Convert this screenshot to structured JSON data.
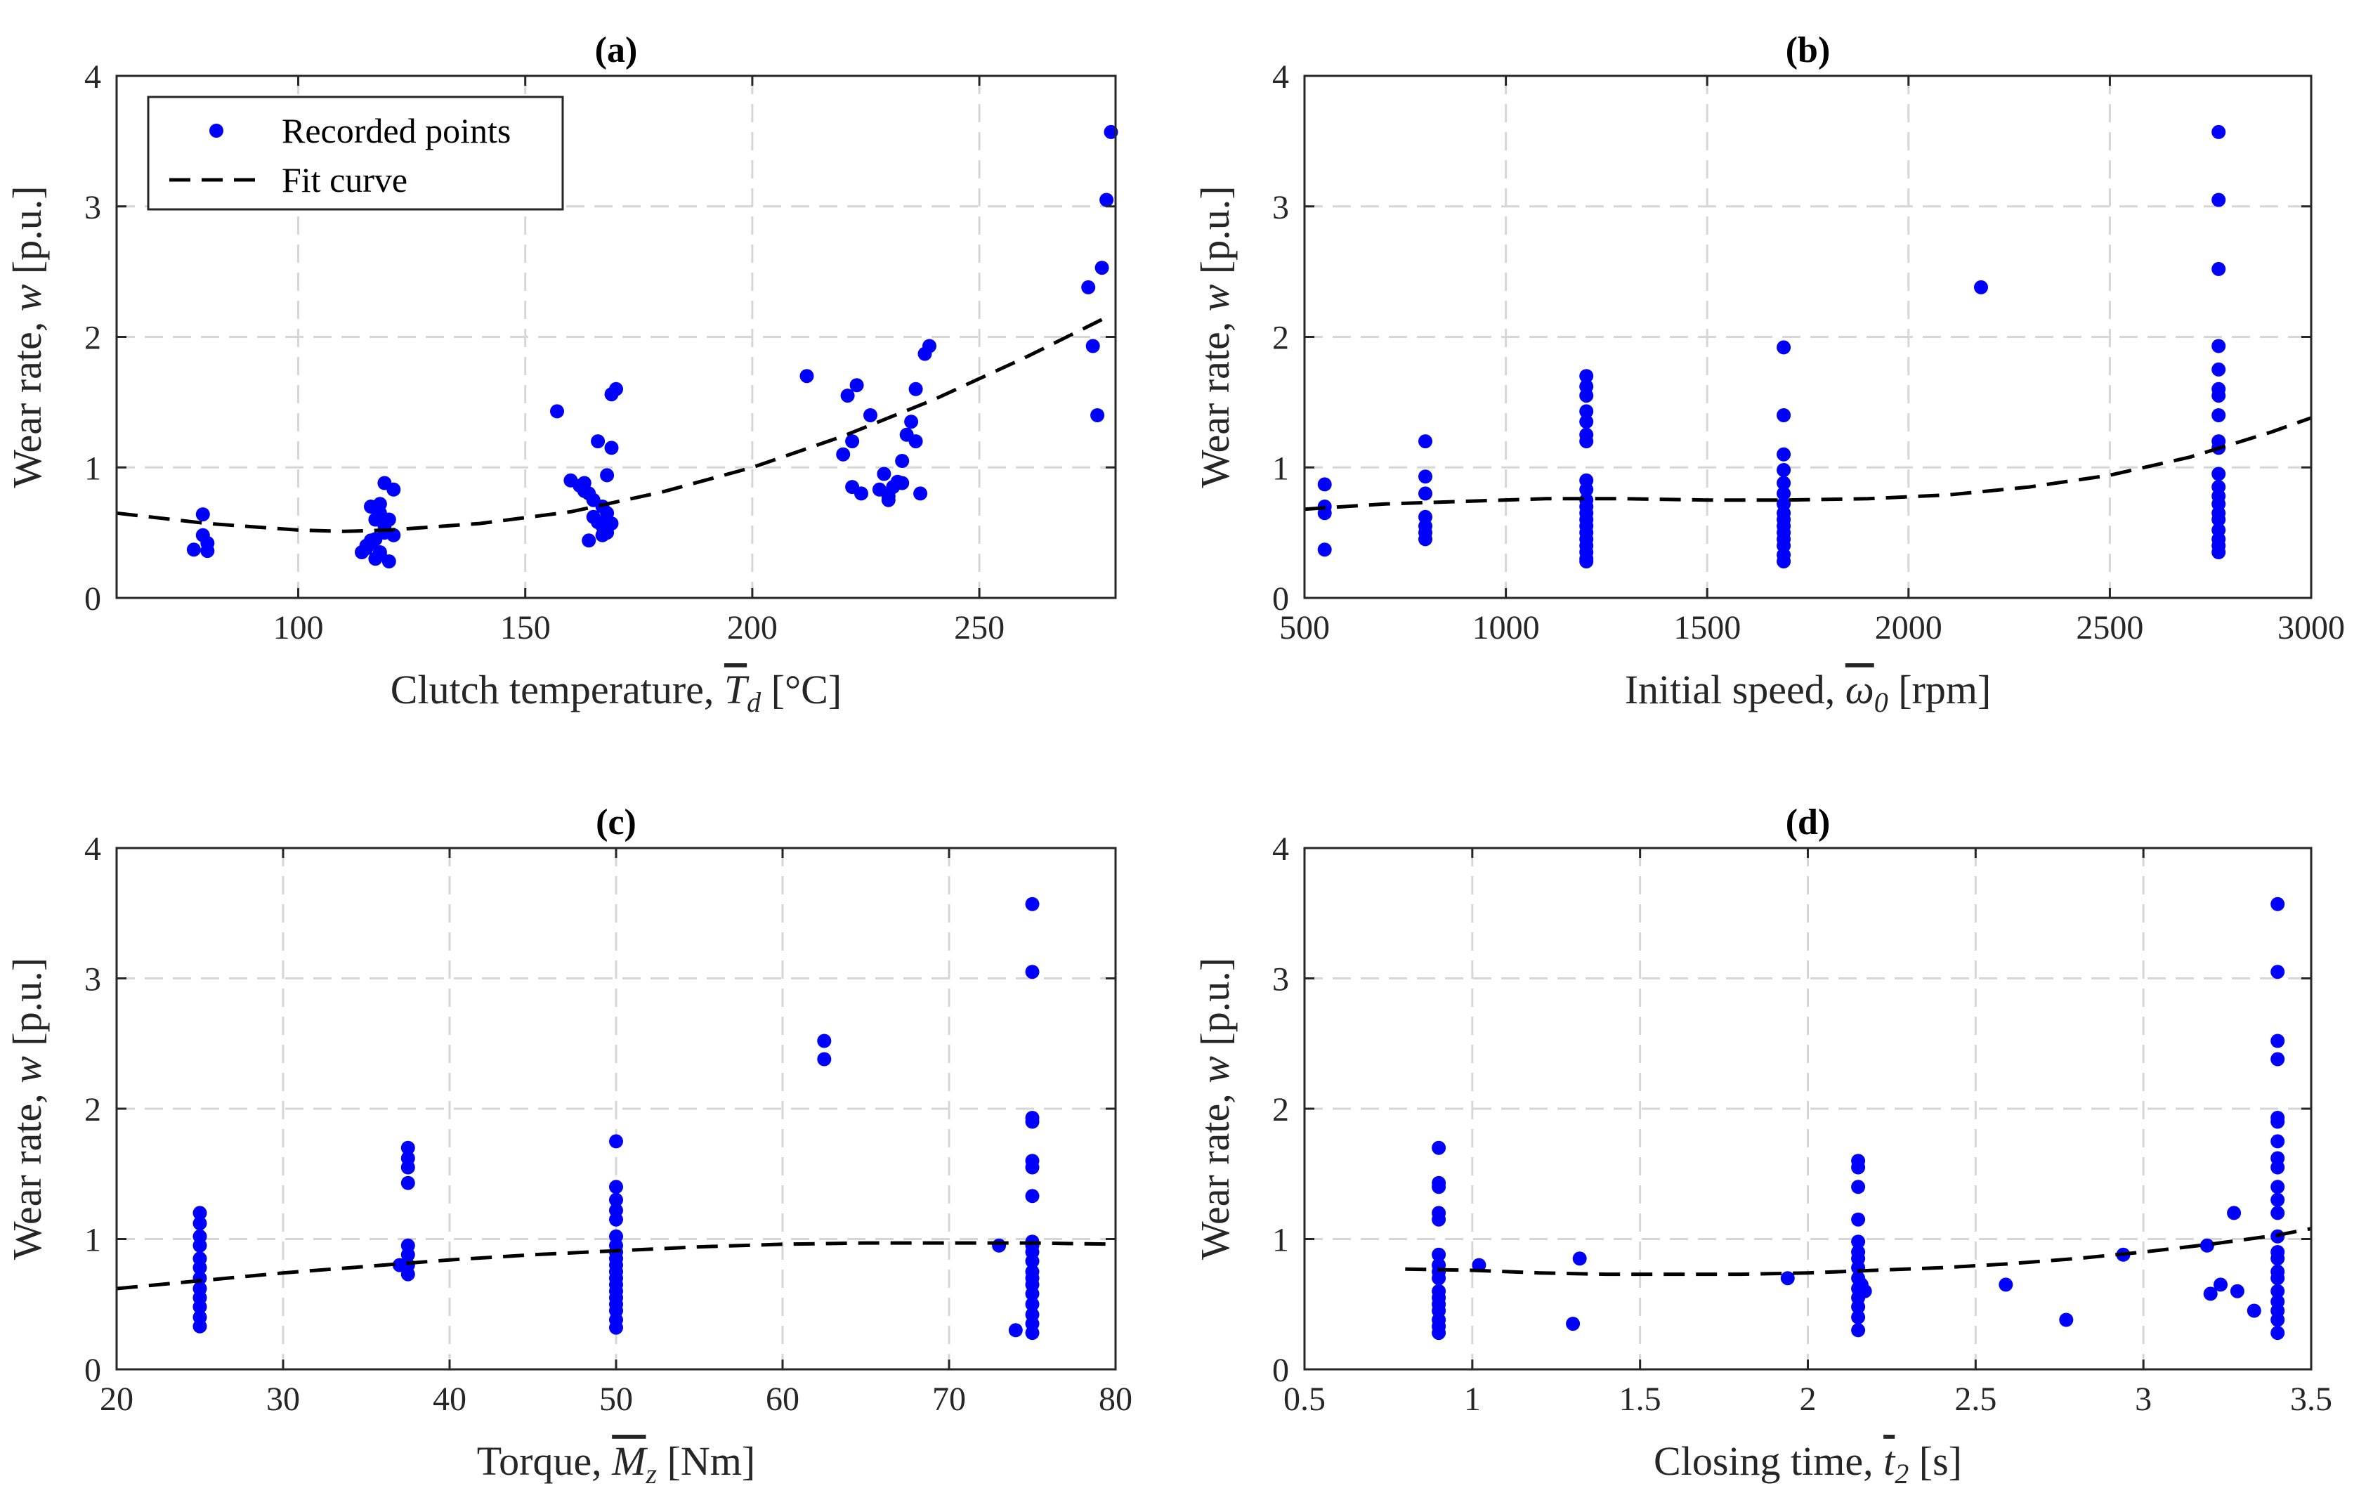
{
  "chart_data": [
    {
      "type": "scatter",
      "panel": "a",
      "title": "(a)",
      "xlabel": {
        "prefix": "Clutch temperature, ",
        "symbol": "T",
        "sub": "d",
        "suffix": " [°C]"
      },
      "ylabel": {
        "prefix": "Wear rate, ",
        "symbol": "w",
        "suffix": " [p.u.]"
      },
      "xlim": [
        60,
        280
      ],
      "ylim": [
        0,
        4
      ],
      "xticks": [
        100,
        150,
        200,
        250
      ],
      "yticks": [
        0,
        1,
        2,
        3,
        4
      ],
      "grid": true,
      "legend": {
        "position": "top-left",
        "entries": [
          "Recorded points",
          "Fit curve"
        ]
      },
      "series": [
        {
          "name": "Recorded points",
          "style": "marker",
          "color": "#0000ff",
          "x": [
            77,
            79,
            80,
            79,
            80,
            114,
            115,
            116,
            117,
            118,
            119,
            120,
            121,
            116,
            118,
            119,
            117,
            115,
            120,
            119,
            118,
            116,
            117,
            121,
            118,
            157,
            160,
            162,
            163,
            164,
            165,
            166,
            167,
            168,
            168,
            169,
            170,
            169,
            168,
            167,
            166,
            165,
            164,
            163,
            169,
            167,
            212,
            220,
            221,
            222,
            223,
            224,
            226,
            228,
            229,
            230,
            231,
            232,
            233,
            234,
            235,
            236,
            237,
            238,
            239,
            222,
            230,
            233,
            236,
            274,
            275,
            276,
            277,
            278,
            279
          ],
          "y": [
            0.37,
            0.48,
            0.36,
            0.64,
            0.42,
            0.35,
            0.4,
            0.44,
            0.3,
            0.33,
            0.5,
            0.6,
            0.83,
            0.7,
            0.65,
            0.88,
            0.45,
            0.38,
            0.28,
            0.55,
            0.72,
            0.42,
            0.6,
            0.48,
            0.35,
            1.43,
            0.9,
            0.86,
            0.88,
            0.8,
            0.75,
            1.2,
            0.7,
            0.65,
            0.94,
            1.56,
            1.6,
            1.15,
            0.5,
            0.55,
            0.58,
            0.62,
            0.44,
            0.82,
            0.57,
            0.48,
            1.7,
            1.1,
            1.55,
            1.2,
            1.63,
            0.8,
            1.4,
            0.83,
            0.95,
            0.78,
            0.85,
            0.89,
            1.05,
            1.25,
            1.35,
            1.2,
            0.8,
            1.87,
            1.93,
            0.85,
            0.75,
            0.88,
            1.6,
            2.38,
            1.93,
            1.4,
            2.53,
            3.05,
            3.57
          ]
        },
        {
          "name": "Fit curve",
          "style": "dashed",
          "color": "#000000",
          "x": [
            60,
            80,
            100,
            110,
            120,
            140,
            160,
            180,
            200,
            220,
            240,
            260,
            278
          ],
          "y": [
            0.65,
            0.57,
            0.52,
            0.51,
            0.52,
            0.57,
            0.66,
            0.81,
            1.0,
            1.24,
            1.52,
            1.84,
            2.15
          ]
        }
      ]
    },
    {
      "type": "scatter",
      "panel": "b",
      "title": "(b)",
      "xlabel": {
        "prefix": "Initial speed, ",
        "symbol": "ω",
        "sub": "0",
        "suffix": " [rpm]"
      },
      "ylabel": {
        "prefix": "Wear rate, ",
        "symbol": "w",
        "suffix": " [p.u.]"
      },
      "xlim": [
        500,
        3000
      ],
      "ylim": [
        0,
        4
      ],
      "xticks": [
        500,
        1000,
        1500,
        2000,
        2500,
        3000
      ],
      "yticks": [
        0,
        1,
        2,
        3,
        4
      ],
      "grid": true,
      "series": [
        {
          "name": "Recorded points",
          "style": "marker",
          "color": "#0000ff",
          "x": [
            550,
            550,
            550,
            550,
            800,
            800,
            800,
            800,
            800,
            800,
            800,
            1200,
            1200,
            1200,
            1200,
            1200,
            1200,
            1200,
            1200,
            1200,
            1200,
            1200,
            1200,
            1200,
            1200,
            1200,
            1200,
            1200,
            1200,
            1200,
            1200,
            1690,
            1690,
            1690,
            1690,
            1690,
            1690,
            1690,
            1690,
            1690,
            1690,
            1690,
            1690,
            1690,
            1690,
            1690,
            2180,
            2770,
            2770,
            2770,
            2770,
            2770,
            2770,
            2770,
            2770,
            2770,
            2770,
            2770,
            2770,
            2770,
            2770,
            2770,
            2770,
            2770,
            2770,
            2770,
            2770
          ],
          "y": [
            0.87,
            0.7,
            0.65,
            0.37,
            1.2,
            0.93,
            0.8,
            0.62,
            0.55,
            0.5,
            0.45,
            1.7,
            1.62,
            1.55,
            1.43,
            1.35,
            1.25,
            1.2,
            0.9,
            0.83,
            0.75,
            0.7,
            0.65,
            0.6,
            0.55,
            0.5,
            0.45,
            0.4,
            0.35,
            0.3,
            0.28,
            1.92,
            1.4,
            1.1,
            0.98,
            0.88,
            0.8,
            0.72,
            0.65,
            0.6,
            0.55,
            0.5,
            0.45,
            0.4,
            0.33,
            0.28,
            2.38,
            3.57,
            3.05,
            2.52,
            1.93,
            1.75,
            1.6,
            1.55,
            1.4,
            1.2,
            1.15,
            0.95,
            0.85,
            0.78,
            0.72,
            0.65,
            0.6,
            0.52,
            0.45,
            0.4,
            0.35
          ]
        },
        {
          "name": "Fit curve",
          "style": "dashed",
          "color": "#000000",
          "x": [
            500,
            700,
            900,
            1100,
            1300,
            1500,
            1700,
            1900,
            2100,
            2300,
            2500,
            2700,
            2900,
            3000
          ],
          "y": [
            0.68,
            0.72,
            0.74,
            0.76,
            0.76,
            0.75,
            0.75,
            0.76,
            0.79,
            0.85,
            0.94,
            1.08,
            1.27,
            1.38
          ]
        }
      ]
    },
    {
      "type": "scatter",
      "panel": "c",
      "title": "(c)",
      "xlabel": {
        "prefix": "Torque, ",
        "symbol": "M",
        "sub": "z",
        "suffix": " [Nm]"
      },
      "ylabel": {
        "prefix": "Wear rate, ",
        "symbol": "w",
        "suffix": " [p.u.]"
      },
      "xlim": [
        20,
        80
      ],
      "ylim": [
        0,
        4
      ],
      "xticks": [
        20,
        30,
        40,
        50,
        60,
        70,
        80
      ],
      "yticks": [
        0,
        1,
        2,
        3,
        4
      ],
      "grid": true,
      "series": [
        {
          "name": "Recorded points",
          "style": "marker",
          "color": "#0000ff",
          "x": [
            25,
            25,
            25,
            25,
            25,
            25,
            25,
            25,
            25,
            25,
            25,
            25,
            37,
            37.5,
            37.5,
            37.5,
            37.5,
            37.5,
            37.5,
            37.5,
            37.5,
            50,
            50,
            50,
            50,
            50,
            50,
            50,
            50,
            50,
            50,
            50,
            50,
            50,
            50,
            50,
            50,
            50,
            50,
            50,
            62.5,
            62.5,
            73,
            74,
            75,
            75,
            75,
            75,
            75,
            75,
            75,
            75,
            75,
            75,
            75,
            75,
            75,
            75,
            75,
            75,
            75,
            75,
            75
          ],
          "y": [
            1.2,
            1.12,
            1.02,
            0.95,
            0.85,
            0.78,
            0.7,
            0.62,
            0.55,
            0.48,
            0.4,
            0.33,
            0.8,
            1.7,
            1.62,
            1.55,
            1.43,
            0.95,
            0.88,
            0.8,
            0.73,
            1.75,
            1.4,
            1.3,
            1.22,
            1.15,
            1.02,
            0.95,
            0.9,
            0.85,
            0.8,
            0.75,
            0.7,
            0.65,
            0.6,
            0.55,
            0.5,
            0.45,
            0.38,
            0.32,
            2.52,
            2.38,
            0.95,
            0.3,
            3.57,
            3.05,
            1.93,
            1.9,
            1.6,
            1.55,
            1.33,
            0.98,
            0.95,
            0.9,
            0.83,
            0.75,
            0.7,
            0.65,
            0.58,
            0.5,
            0.42,
            0.35,
            0.28
          ]
        },
        {
          "name": "Fit curve",
          "style": "dashed",
          "color": "#000000",
          "x": [
            20,
            25,
            30,
            35,
            40,
            45,
            50,
            55,
            60,
            65,
            70,
            75,
            80
          ],
          "y": [
            0.62,
            0.68,
            0.74,
            0.79,
            0.84,
            0.88,
            0.91,
            0.94,
            0.96,
            0.97,
            0.97,
            0.97,
            0.96
          ]
        }
      ]
    },
    {
      "type": "scatter",
      "panel": "d",
      "title": "(d)",
      "xlabel": {
        "prefix": "Closing time, ",
        "symbol": "t",
        "sub": "2",
        "suffix": " [s]"
      },
      "ylabel": {
        "prefix": "Wear rate, ",
        "symbol": "w",
        "suffix": " [p.u.]"
      },
      "xlim": [
        0.5,
        3.5
      ],
      "ylim": [
        0,
        4
      ],
      "xticks": [
        0.5,
        1,
        1.5,
        2,
        2.5,
        3,
        3.5
      ],
      "yticks": [
        0,
        1,
        2,
        3,
        4
      ],
      "grid": true,
      "series": [
        {
          "name": "Recorded points",
          "style": "marker",
          "color": "#0000ff",
          "x": [
            0.9,
            0.9,
            0.9,
            0.9,
            0.9,
            0.9,
            0.9,
            0.9,
            0.9,
            0.9,
            0.9,
            0.9,
            0.9,
            0.9,
            0.9,
            0.9,
            1.02,
            1.3,
            1.32,
            1.94,
            2.15,
            2.15,
            2.15,
            2.15,
            2.15,
            2.15,
            2.15,
            2.15,
            2.15,
            2.15,
            2.15,
            2.15,
            2.15,
            2.15,
            2.16,
            2.17,
            2.59,
            2.77,
            2.94,
            3.19,
            3.2,
            3.23,
            3.27,
            3.28,
            3.33,
            3.4,
            3.4,
            3.4,
            3.4,
            3.4,
            3.4,
            3.4,
            3.4,
            3.4,
            3.4,
            3.4,
            3.4,
            3.4,
            3.4,
            3.4,
            3.4,
            3.4,
            3.4,
            3.4,
            3.4,
            3.4,
            3.4
          ],
          "y": [
            1.7,
            1.43,
            1.4,
            1.2,
            1.15,
            0.88,
            0.8,
            0.75,
            0.7,
            0.6,
            0.55,
            0.5,
            0.45,
            0.38,
            0.33,
            0.28,
            0.8,
            0.35,
            0.85,
            0.7,
            1.6,
            1.55,
            1.4,
            1.15,
            0.98,
            0.9,
            0.85,
            0.78,
            0.7,
            0.62,
            0.55,
            0.48,
            0.4,
            0.3,
            0.65,
            0.6,
            0.65,
            0.38,
            0.88,
            0.95,
            0.58,
            0.65,
            1.2,
            0.6,
            0.45,
            3.57,
            3.05,
            2.52,
            2.38,
            1.93,
            1.9,
            1.75,
            1.62,
            1.55,
            1.4,
            1.3,
            1.2,
            1.02,
            0.9,
            0.85,
            0.75,
            0.7,
            0.6,
            0.52,
            0.45,
            0.38,
            0.28
          ]
        },
        {
          "name": "Fit curve",
          "style": "dashed",
          "color": "#000000",
          "x": [
            0.8,
            1.0,
            1.2,
            1.4,
            1.6,
            1.8,
            2.0,
            2.2,
            2.4,
            2.6,
            2.8,
            3.0,
            3.2,
            3.4,
            3.5
          ],
          "y": [
            0.77,
            0.76,
            0.74,
            0.73,
            0.73,
            0.73,
            0.74,
            0.76,
            0.78,
            0.81,
            0.85,
            0.9,
            0.96,
            1.03,
            1.08
          ]
        }
      ]
    }
  ]
}
